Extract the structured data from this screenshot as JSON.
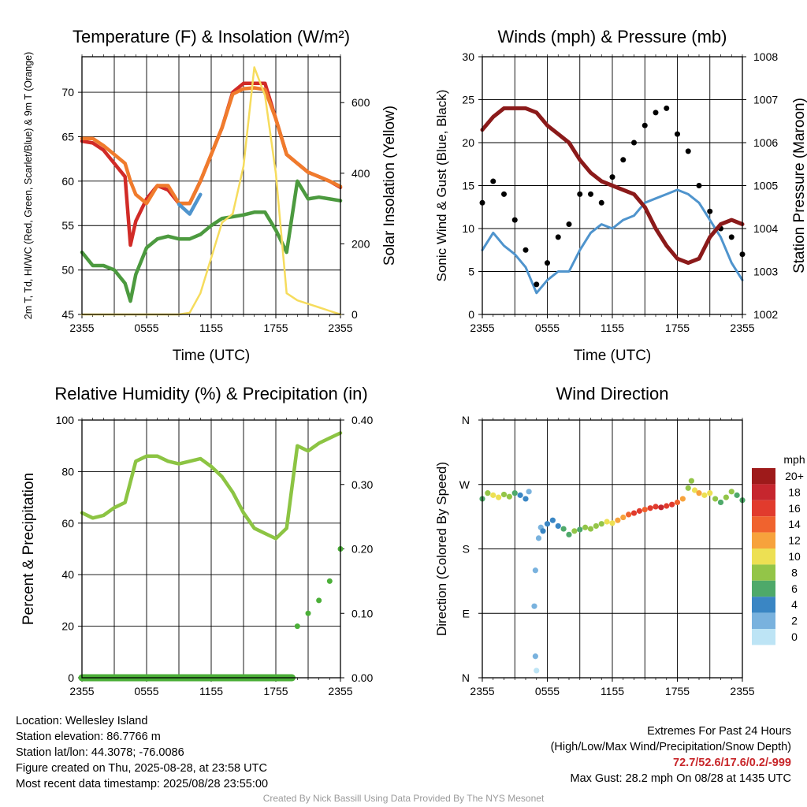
{
  "chart_data": [
    {
      "type": "line",
      "title": "Temperature (F) & Insolation (W/m²)",
      "xlabel": "Time (UTC)",
      "ylabel": "2m T, Td, HI/WC (Red, Green, Scarlet/Blue) & 9m T (Orange)",
      "ylabel_right": "Solar Insolation (Yellow)",
      "x_ticks": [
        "2355",
        "0555",
        "1155",
        "1755",
        "2355"
      ],
      "x_range_hours": [
        0,
        24
      ],
      "ylim": [
        45,
        74
      ],
      "y_ticks": [
        45,
        50,
        55,
        60,
        65,
        70
      ],
      "ylim_right": [
        0,
        730
      ],
      "y_ticks_right": [
        0,
        200,
        400,
        600
      ],
      "grid": true,
      "x_hours": [
        0,
        1,
        2,
        3,
        4,
        4.5,
        5,
        6,
        7,
        8,
        9,
        10,
        11,
        12,
        13,
        14,
        15,
        16,
        17,
        18,
        19,
        20,
        21,
        22,
        23,
        24
      ],
      "series": [
        {
          "color": "#d12b27",
          "values": [
            64.5,
            64.3,
            63.5,
            62,
            60.5,
            52.8,
            55.5,
            58,
            59.5,
            59,
            57.5,
            57.5,
            60,
            63,
            66,
            70,
            71,
            71,
            71,
            67,
            63,
            62,
            61,
            60.5,
            60,
            59.3
          ]
        },
        {
          "color": "#f07b2c",
          "values": [
            64.8,
            64.8,
            64,
            63,
            62,
            60,
            58.5,
            57.5,
            59.5,
            59.5,
            57.5,
            57.5,
            60,
            63,
            66,
            69.8,
            70.4,
            70.5,
            70.3,
            67,
            63,
            62,
            61,
            60.5,
            60,
            59.4
          ]
        },
        {
          "color": "#4c9a3f",
          "values": [
            52,
            50.5,
            50.5,
            50,
            48.5,
            46.5,
            49.5,
            52.5,
            53.5,
            53.8,
            53.5,
            53.5,
            54,
            55,
            55.8,
            56,
            56.2,
            56.5,
            56.5,
            54.5,
            52,
            60,
            58,
            58.2,
            58,
            57.8
          ]
        },
        {
          "color": "#4f94cd",
          "values": [
            null,
            null,
            null,
            null,
            null,
            null,
            null,
            null,
            null,
            null,
            57.4,
            56.3,
            58.5,
            null,
            null,
            null,
            null,
            null,
            null,
            null,
            null,
            null,
            null,
            null,
            null,
            null
          ]
        },
        {
          "color": "#f6dc5d",
          "axis": "right",
          "values": [
            0,
            0,
            0,
            0,
            0,
            0,
            0,
            0,
            0,
            0,
            0,
            5,
            60,
            160,
            260,
            285,
            420,
            700,
            620,
            400,
            60,
            40,
            30,
            20,
            10,
            0
          ]
        }
      ]
    },
    {
      "type": "line",
      "title": "Winds (mph) & Pressure (mb)",
      "xlabel": "Time (UTC)",
      "ylabel": "Sonic Wind & Gust (Blue, Black)",
      "ylabel_right": "Station Pressure (Maroon)",
      "x_ticks": [
        "2355",
        "0555",
        "1155",
        "1755",
        "2355"
      ],
      "x_range_hours": [
        0,
        24
      ],
      "ylim": [
        0,
        30
      ],
      "y_ticks": [
        0,
        5,
        10,
        15,
        20,
        25,
        30
      ],
      "ylim_right": [
        1002,
        1008
      ],
      "y_ticks_right": [
        1002,
        1003,
        1004,
        1005,
        1006,
        1007,
        1008
      ],
      "grid": true,
      "x_hours": [
        0,
        1,
        2,
        3,
        4,
        5,
        6,
        7,
        8,
        9,
        10,
        11,
        12,
        13,
        14,
        15,
        16,
        17,
        18,
        19,
        20,
        21,
        22,
        23,
        24
      ],
      "series": [
        {
          "color": "#4f94cd",
          "values": [
            7.5,
            9.5,
            8,
            7,
            5.5,
            2.5,
            4,
            5,
            5,
            7.5,
            9.5,
            10.5,
            10,
            11,
            11.5,
            13,
            13.5,
            14,
            14.5,
            14,
            13,
            11,
            9,
            6,
            4
          ]
        },
        {
          "color": "#000000",
          "points": true,
          "values": [
            13,
            15.5,
            14,
            11,
            7.5,
            3.5,
            6,
            9,
            10.5,
            14,
            14,
            13,
            16,
            18,
            20,
            22,
            23.5,
            24,
            21,
            19,
            15,
            12,
            10,
            9,
            7
          ]
        },
        {
          "color": "#8b1a1a",
          "axis": "right",
          "values": [
            1006.3,
            1006.6,
            1006.8,
            1006.8,
            1006.8,
            1006.7,
            1006.4,
            1006.2,
            1006.0,
            1005.6,
            1005.3,
            1005.1,
            1005.0,
            1004.9,
            1004.8,
            1004.5,
            1004.0,
            1003.6,
            1003.3,
            1003.2,
            1003.3,
            1003.8,
            1004.1,
            1004.2,
            1004.1
          ]
        }
      ]
    },
    {
      "type": "line",
      "title": "Relative Humidity (%) & Precipitation (in)",
      "xlabel": "",
      "ylabel": "Percent & Precipitation",
      "x_ticks": [
        "2355",
        "0555",
        "1155",
        "1755",
        "2355"
      ],
      "x_range_hours": [
        0,
        24
      ],
      "ylim": [
        0,
        100
      ],
      "y_ticks": [
        0,
        20,
        40,
        60,
        80,
        100
      ],
      "ylim_right": [
        0,
        0.4
      ],
      "y_ticks_right": [
        "0.00",
        "0.10",
        "0.20",
        "0.30",
        "0.40"
      ],
      "grid": true,
      "x_hours": [
        0,
        1,
        2,
        3,
        4,
        5,
        6,
        7,
        8,
        9,
        10,
        11,
        12,
        13,
        14,
        15,
        16,
        17,
        18,
        19,
        20,
        21,
        22,
        23,
        24
      ],
      "series": [
        {
          "color": "#8cc443",
          "values": [
            64,
            62,
            63,
            66,
            68,
            84,
            86,
            86,
            84,
            83,
            84,
            85,
            82,
            78,
            72,
            64,
            58,
            56,
            54,
            58,
            90,
            88,
            91,
            93,
            95
          ]
        },
        {
          "color": "#4caf39",
          "axis": "right",
          "points": true,
          "values": [
            0,
            0,
            0,
            0,
            0,
            0,
            0,
            0,
            0,
            0,
            0,
            0,
            0,
            0,
            0,
            0,
            0,
            0,
            0,
            0,
            0.08,
            0.1,
            0.12,
            0.15,
            0.2
          ]
        }
      ]
    },
    {
      "type": "scatter",
      "title": "Wind Direction",
      "ylabel": "Direction (Colored By Speed)",
      "x_ticks": [
        "2355",
        "0555",
        "1155",
        "1755",
        "2355"
      ],
      "x_range_hours": [
        0,
        24
      ],
      "y_ticks": [
        "N",
        "E",
        "S",
        "W",
        "N"
      ],
      "ylim_degrees": [
        0,
        360
      ],
      "grid": true,
      "legend_title": "mph",
      "legend_labels": [
        "20+",
        "18",
        "16",
        "14",
        "12",
        "10",
        "8",
        "6",
        "4",
        "2",
        "0"
      ],
      "legend_colors": [
        "#9e1a1a",
        "#c6262e",
        "#e13b2d",
        "#f0632e",
        "#f7a23c",
        "#ede053",
        "#93c548",
        "#4ea96a",
        "#3a86c4",
        "#79b2de",
        "#bde4f5"
      ],
      "points": [
        {
          "x": 0.0,
          "dir": 250,
          "speed": 6
        },
        {
          "x": 0.5,
          "dir": 258,
          "speed": 7
        },
        {
          "x": 1.0,
          "dir": 255,
          "speed": 9
        },
        {
          "x": 1.5,
          "dir": 252,
          "speed": 10
        },
        {
          "x": 2.0,
          "dir": 256,
          "speed": 8
        },
        {
          "x": 2.5,
          "dir": 253,
          "speed": 7
        },
        {
          "x": 3.0,
          "dir": 258,
          "speed": 5
        },
        {
          "x": 3.5,
          "dir": 255,
          "speed": 4
        },
        {
          "x": 4.0,
          "dir": 250,
          "speed": 3
        },
        {
          "x": 4.3,
          "dir": 260,
          "speed": 2
        },
        {
          "x": 4.8,
          "dir": 100,
          "speed": 1
        },
        {
          "x": 4.9,
          "dir": 150,
          "speed": 1
        },
        {
          "x": 4.9,
          "dir": 30,
          "speed": 1
        },
        {
          "x": 5.0,
          "dir": 10,
          "speed": 0
        },
        {
          "x": 5.2,
          "dir": 195,
          "speed": 2
        },
        {
          "x": 5.4,
          "dir": 210,
          "speed": 2
        },
        {
          "x": 5.6,
          "dir": 205,
          "speed": 3
        },
        {
          "x": 6.0,
          "dir": 215,
          "speed": 4
        },
        {
          "x": 6.5,
          "dir": 220,
          "speed": 3
        },
        {
          "x": 7.0,
          "dir": 212,
          "speed": 4
        },
        {
          "x": 7.5,
          "dir": 208,
          "speed": 5
        },
        {
          "x": 8.0,
          "dir": 200,
          "speed": 6
        },
        {
          "x": 8.5,
          "dir": 205,
          "speed": 7
        },
        {
          "x": 9.0,
          "dir": 207,
          "speed": 6
        },
        {
          "x": 9.5,
          "dir": 210,
          "speed": 7
        },
        {
          "x": 10.0,
          "dir": 208,
          "speed": 8
        },
        {
          "x": 10.5,
          "dir": 212,
          "speed": 7
        },
        {
          "x": 11.0,
          "dir": 215,
          "speed": 8
        },
        {
          "x": 11.5,
          "dir": 218,
          "speed": 9
        },
        {
          "x": 12.0,
          "dir": 216,
          "speed": 10
        },
        {
          "x": 12.5,
          "dir": 220,
          "speed": 11
        },
        {
          "x": 13.0,
          "dir": 224,
          "speed": 12
        },
        {
          "x": 13.5,
          "dir": 228,
          "speed": 14
        },
        {
          "x": 14.0,
          "dir": 230,
          "speed": 15
        },
        {
          "x": 14.5,
          "dir": 233,
          "speed": 16
        },
        {
          "x": 15.0,
          "dir": 235,
          "speed": 14
        },
        {
          "x": 15.5,
          "dir": 237,
          "speed": 15
        },
        {
          "x": 16.0,
          "dir": 239,
          "speed": 16
        },
        {
          "x": 16.5,
          "dir": 238,
          "speed": 17
        },
        {
          "x": 17.0,
          "dir": 240,
          "speed": 16
        },
        {
          "x": 17.5,
          "dir": 242,
          "speed": 15
        },
        {
          "x": 18.0,
          "dir": 245,
          "speed": 14
        },
        {
          "x": 18.5,
          "dir": 250,
          "speed": 12
        },
        {
          "x": 19.0,
          "dir": 265,
          "speed": 8
        },
        {
          "x": 19.3,
          "dir": 275,
          "speed": 7
        },
        {
          "x": 19.6,
          "dir": 262,
          "speed": 10
        },
        {
          "x": 20.0,
          "dir": 258,
          "speed": 11
        },
        {
          "x": 20.5,
          "dir": 255,
          "speed": 10
        },
        {
          "x": 21.0,
          "dir": 258,
          "speed": 9
        },
        {
          "x": 21.5,
          "dir": 250,
          "speed": 7
        },
        {
          "x": 22.0,
          "dir": 245,
          "speed": 6
        },
        {
          "x": 22.5,
          "dir": 252,
          "speed": 8
        },
        {
          "x": 23.0,
          "dir": 260,
          "speed": 7
        },
        {
          "x": 23.5,
          "dir": 255,
          "speed": 6
        },
        {
          "x": 24.0,
          "dir": 248,
          "speed": 5
        }
      ]
    }
  ],
  "info": {
    "location": "Location: Wellesley Island",
    "elevation": "Station elevation: 86.7766 m",
    "latlon": "Station lat/lon: 44.3078; -76.0086",
    "created": "Figure created on Thu, 2025-08-28, at 23:58 UTC",
    "recent": "Most recent data timestamp: 2025/08/28 23:55:00"
  },
  "extremes": {
    "title": "Extremes For Past 24 Hours",
    "subtitle": "(High/Low/Max Wind/Precipitation/Snow Depth)",
    "values": "72.7/52.6/17.6/0.2/-999",
    "max_gust": "Max Gust: 28.2 mph On 08/28 at 1435 UTC"
  },
  "credit": "Created By Nick Bassill Using Data Provided By The NYS Mesonet"
}
